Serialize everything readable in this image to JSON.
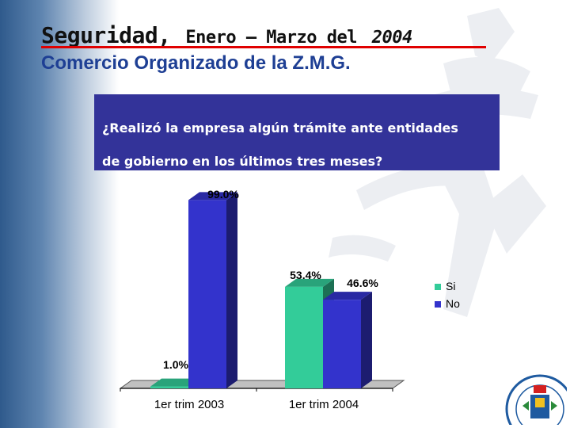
{
  "header": {
    "title_main": "Seguridad,",
    "title_rest": "Enero – Marzo del",
    "title_year": "2004",
    "subtitle": "Comercio Organizado de la Z.M.G."
  },
  "question": {
    "line1": "¿Realizó la empresa algún trámite ante entidades",
    "line2": "de gobierno en los últimos tres meses?"
  },
  "colors": {
    "si": "#33cc99",
    "no": "#3333cc",
    "title_rule": "#e00000",
    "subtitle": "#1e3f94",
    "question_bg": "#333399"
  },
  "chart_data": {
    "type": "bar",
    "categories": [
      "1er trim 2003",
      "1er trim 2004"
    ],
    "series": [
      {
        "name": "Si",
        "values": [
          1.0,
          53.4
        ],
        "labels": [
          "1.0%",
          "53.4%"
        ]
      },
      {
        "name": "No",
        "values": [
          99.0,
          46.6
        ],
        "labels": [
          "99.0%",
          "46.6%"
        ]
      }
    ],
    "ylim": [
      0,
      100
    ],
    "grid": false,
    "legend": "right",
    "three_d": true
  }
}
